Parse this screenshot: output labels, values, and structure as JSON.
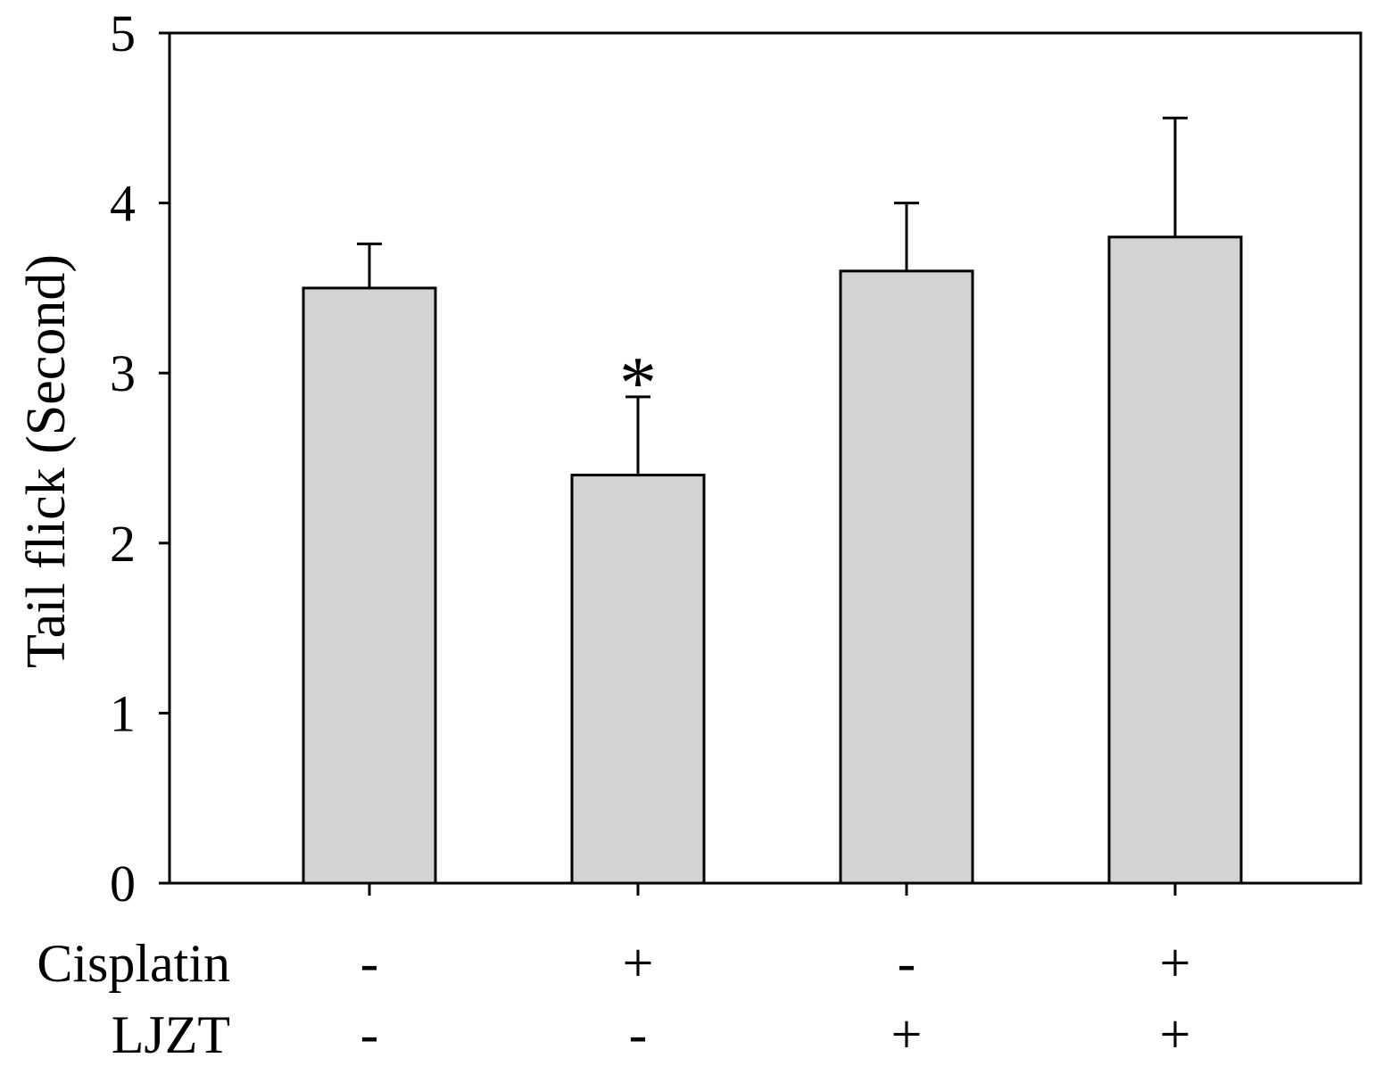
{
  "chart_data": {
    "type": "bar",
    "ylabel": "Tail flick (Second)",
    "ylim": [
      0,
      5
    ],
    "yticks": [
      "0",
      "1",
      "2",
      "3",
      "4",
      "5"
    ],
    "grid": false,
    "categories": [
      "1",
      "2",
      "3",
      "4"
    ],
    "values": [
      3.5,
      2.4,
      3.6,
      3.8
    ],
    "error_upper": [
      3.76,
      2.86,
      4.0,
      4.5
    ],
    "bar_color": "#d3d3d3",
    "annotations": [
      {
        "category_index": 1,
        "text": "*"
      }
    ],
    "treatments": [
      {
        "name": "Cisplatin",
        "values": [
          "-",
          "+",
          "-",
          "+"
        ]
      },
      {
        "name": "LJZT",
        "values": [
          "-",
          "-",
          "+",
          "+"
        ]
      }
    ]
  }
}
